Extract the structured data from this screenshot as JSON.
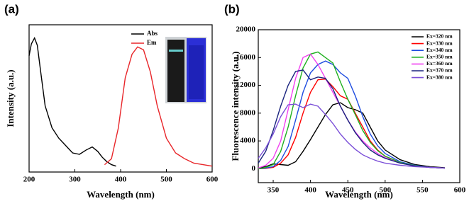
{
  "chart_data": [
    {
      "type": "line",
      "panel_label": "(a)",
      "x_label": "Wavelength (nm)",
      "y_label": "Intensity (a.u.)",
      "xlim": [
        200,
        600
      ],
      "xticks": [
        200,
        300,
        400,
        500,
        600
      ],
      "ylim": [
        0,
        1
      ],
      "yticks": [],
      "legend": "upper right",
      "series": [
        {
          "name": "Abs",
          "color": "#000000",
          "x": [
            200,
            205,
            212,
            218,
            225,
            235,
            250,
            265,
            280,
            295,
            310,
            325,
            338,
            350,
            360,
            370,
            380,
            390
          ],
          "values": [
            0.79,
            0.87,
            0.91,
            0.86,
            0.69,
            0.45,
            0.3,
            0.23,
            0.18,
            0.13,
            0.12,
            0.15,
            0.17,
            0.14,
            0.1,
            0.07,
            0.05,
            0.04
          ]
        },
        {
          "name": "Em",
          "color": "#e8262a",
          "x": [
            365,
            380,
            395,
            410,
            425,
            437,
            450,
            465,
            480,
            500,
            520,
            540,
            560,
            580,
            600
          ],
          "values": [
            0.05,
            0.09,
            0.3,
            0.64,
            0.8,
            0.85,
            0.83,
            0.68,
            0.45,
            0.23,
            0.13,
            0.09,
            0.06,
            0.05,
            0.04
          ]
        }
      ]
    },
    {
      "type": "line",
      "panel_label": "(b)",
      "x_label": "Wavelength (nm)",
      "y_label": "Fluorescence intensity (a.u.)",
      "xlim": [
        330,
        600
      ],
      "xticks": [
        350,
        400,
        450,
        500,
        550,
        600
      ],
      "ylim": [
        -2000,
        20000
      ],
      "yticks": [
        0,
        4000,
        8000,
        12000,
        16000,
        20000
      ],
      "legend": "upper right",
      "x": [
        330,
        340,
        350,
        360,
        370,
        380,
        390,
        400,
        410,
        420,
        430,
        440,
        450,
        460,
        470,
        480,
        490,
        500,
        520,
        540,
        560,
        580
      ],
      "series": [
        {
          "name": "Ex=320 nm",
          "color": "#000000",
          "values": [
            100,
            300,
            700,
            600,
            500,
            1000,
            2500,
            4200,
            6000,
            7800,
            9200,
            9500,
            8800,
            8500,
            8000,
            6000,
            4000,
            2700,
            1300,
            600,
            300,
            150
          ]
        },
        {
          "name": "Ex=330 nm",
          "color": "#ff0000",
          "values": [
            0,
            50,
            200,
            800,
            2000,
            4500,
            8000,
            11000,
            12800,
            12900,
            11800,
            10500,
            10000,
            8000,
            6000,
            4000,
            2700,
            1800,
            900,
            400,
            200,
            100
          ]
        },
        {
          "name": "Ex=340 nm",
          "color": "#1f4de0",
          "values": [
            0,
            100,
            300,
            1200,
            3200,
            7000,
            11000,
            13800,
            15000,
            15500,
            15000,
            13800,
            13000,
            10500,
            7500,
            5000,
            3300,
            2200,
            1000,
            500,
            200,
            100
          ]
        },
        {
          "name": "Ex=350 nm",
          "color": "#1fb01f",
          "values": [
            0,
            200,
            600,
            2500,
            6000,
            10500,
            14500,
            16500,
            16800,
            16000,
            15200,
            12500,
            10000,
            7800,
            5500,
            3800,
            2600,
            1800,
            900,
            450,
            200,
            100
          ]
        },
        {
          "name": "Ex=360 nm",
          "color": "#f040f0",
          "values": [
            100,
            500,
            1500,
            4000,
            8500,
            13000,
            16000,
            16500,
            15000,
            13000,
            11000,
            9000,
            7000,
            5300,
            4000,
            3000,
            2200,
            1600,
            800,
            400,
            200,
            100
          ]
        },
        {
          "name": "Ex=370 nm",
          "color": "#1a237e",
          "values": [
            800,
            2500,
            5500,
            9000,
            12000,
            14000,
            14200,
            12800,
            13200,
            13000,
            11500,
            9000,
            7000,
            5200,
            3800,
            2700,
            2000,
            1500,
            800,
            400,
            200,
            100
          ]
        },
        {
          "name": "Ex=380 nm",
          "color": "#7b4fd8",
          "values": [
            1500,
            3000,
            5000,
            7500,
            9200,
            9300,
            8800,
            9300,
            9000,
            7800,
            6500,
            5000,
            3800,
            2800,
            2000,
            1500,
            1100,
            800,
            500,
            300,
            200,
            100
          ]
        }
      ]
    }
  ]
}
